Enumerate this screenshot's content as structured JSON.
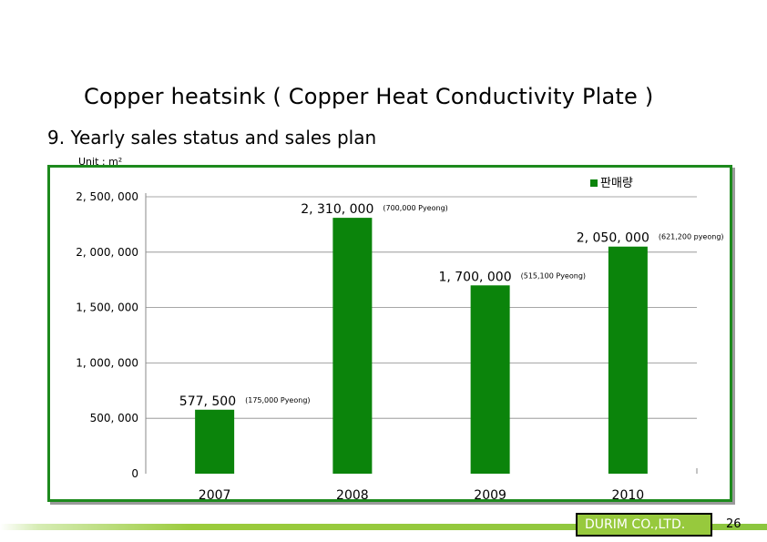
{
  "slide": {
    "title": "Copper heatsink ( Copper Heat Conductivity Plate )",
    "subtitle": "9. Yearly sales status and sales plan",
    "unit": "Unit : m²",
    "company": "DURIM CO.,LTD.",
    "page_number": "26"
  },
  "colors": {
    "bar": "#0b840b",
    "frame": "#1d8a1d",
    "accent": "#97c93d"
  },
  "chart_data": {
    "type": "bar",
    "categories": [
      "2007",
      "2008",
      "2009",
      "2010"
    ],
    "series": [
      {
        "name": "판매량",
        "values": [
          577500,
          2310000,
          1700000,
          2050000
        ]
      }
    ],
    "data_labels": [
      "577, 500",
      "2, 310, 000",
      "1, 700, 000",
      "2, 050, 000"
    ],
    "annotations": [
      "(175,000 Pyeong)",
      "(700,000 Pyeong)",
      "(515,100 Pyeong)",
      "(621,200 pyeong)"
    ],
    "y_ticks": [
      0,
      500000,
      1000000,
      1500000,
      2000000,
      2500000
    ],
    "y_tick_labels": [
      "0",
      "500, 000",
      "1, 000, 000",
      "1, 500, 000",
      "2, 000, 000",
      "2, 500, 000"
    ],
    "ylim": [
      0,
      2500000
    ],
    "grid": "y-major",
    "legend": "top-right"
  }
}
